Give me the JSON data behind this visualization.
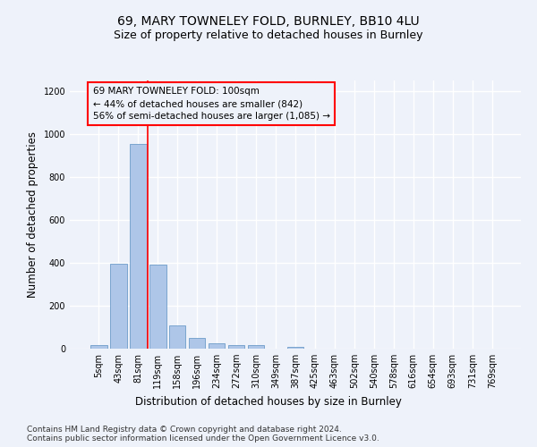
{
  "title_line1": "69, MARY TOWNELEY FOLD, BURNLEY, BB10 4LU",
  "title_line2": "Size of property relative to detached houses in Burnley",
  "xlabel": "Distribution of detached houses by size in Burnley",
  "ylabel": "Number of detached properties",
  "footnote": "Contains HM Land Registry data © Crown copyright and database right 2024.\nContains public sector information licensed under the Open Government Licence v3.0.",
  "bar_labels": [
    "5sqm",
    "43sqm",
    "81sqm",
    "119sqm",
    "158sqm",
    "196sqm",
    "234sqm",
    "272sqm",
    "310sqm",
    "349sqm",
    "387sqm",
    "425sqm",
    "463sqm",
    "502sqm",
    "540sqm",
    "578sqm",
    "616sqm",
    "654sqm",
    "693sqm",
    "731sqm",
    "769sqm"
  ],
  "bar_values": [
    15,
    395,
    955,
    390,
    110,
    50,
    25,
    15,
    15,
    0,
    10,
    0,
    0,
    0,
    0,
    0,
    0,
    0,
    0,
    0,
    0
  ],
  "bar_color": "#aec6e8",
  "bar_edge_color": "#5a8fc2",
  "property_line_x": 2.5,
  "property_line_color": "red",
  "annotation_text": "69 MARY TOWNELEY FOLD: 100sqm\n← 44% of detached houses are smaller (842)\n56% of semi-detached houses are larger (1,085) →",
  "annotation_box_color": "red",
  "ylim": [
    0,
    1250
  ],
  "yticks": [
    0,
    200,
    400,
    600,
    800,
    1000,
    1200
  ],
  "background_color": "#eef2fa",
  "grid_color": "white",
  "title1_fontsize": 10,
  "title2_fontsize": 9,
  "xlabel_fontsize": 8.5,
  "ylabel_fontsize": 8.5,
  "tick_fontsize": 7,
  "footnote_fontsize": 6.5,
  "annot_fontsize": 7.5
}
